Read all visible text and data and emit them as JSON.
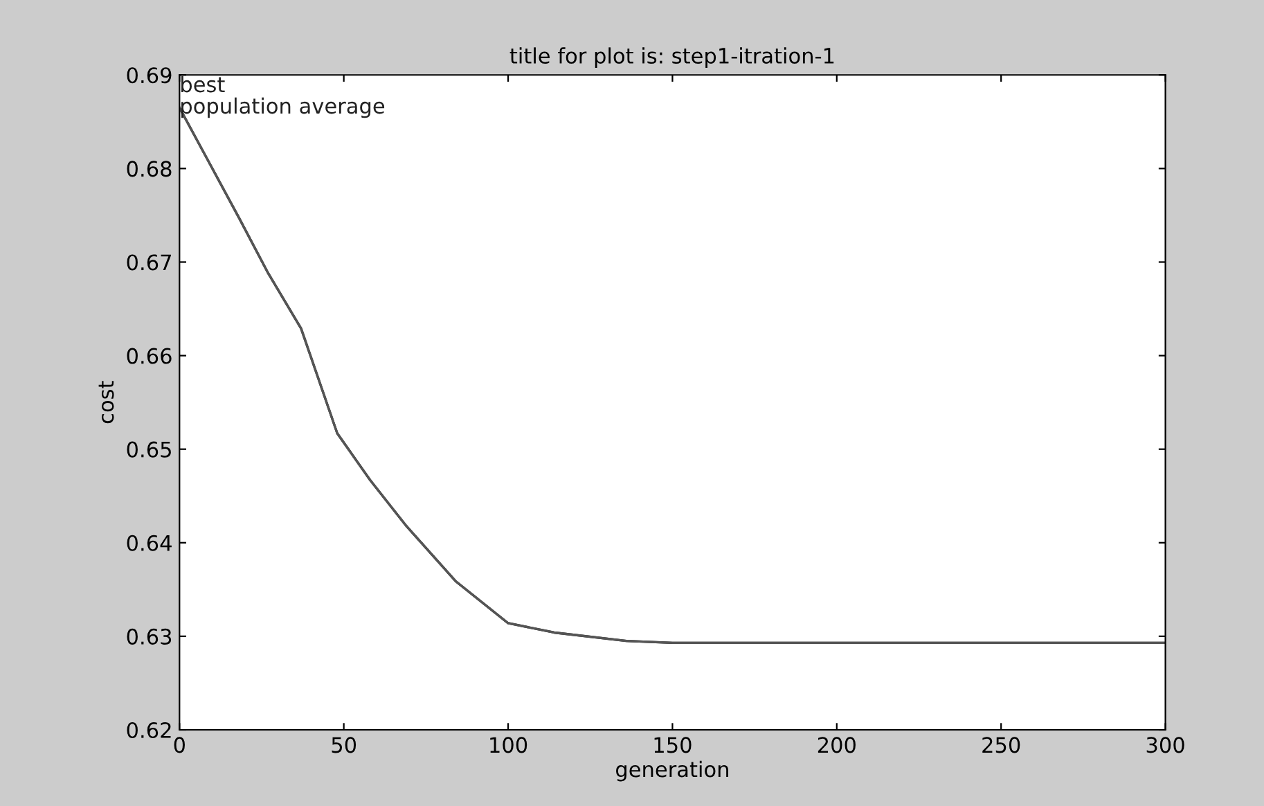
{
  "chart_data": {
    "type": "line",
    "title": "title for plot is: step1-itration-1",
    "xlabel": "generation",
    "ylabel": "cost",
    "xlim": [
      0,
      300
    ],
    "xticks": [
      0,
      50,
      100,
      150,
      200,
      250,
      300
    ],
    "ylim": [
      0.62,
      0.69
    ],
    "yticks": [
      0.62,
      0.63,
      0.64,
      0.65,
      0.66,
      0.67,
      0.68,
      0.69
    ],
    "grid": false,
    "legend": false,
    "marker": "none",
    "line_style": "solid",
    "series": [
      {
        "name": "best",
        "color": "#222222",
        "x": [
          0,
          8,
          18,
          27,
          37,
          48,
          58,
          69,
          84,
          100,
          114,
          136,
          150,
          200,
          250,
          300
        ],
        "values": [
          0.6865,
          0.6813,
          0.6748,
          0.6688,
          0.6629,
          0.6517,
          0.6467,
          0.6418,
          0.6359,
          0.6314,
          0.6304,
          0.6295,
          0.6293,
          0.6293,
          0.6293,
          0.6293
        ]
      },
      {
        "name": "population average",
        "color": "#555555",
        "x": [
          0,
          8,
          18,
          27,
          37,
          48,
          58,
          69,
          84,
          100,
          114,
          136,
          150,
          200,
          250,
          300
        ],
        "values": [
          0.6865,
          0.6813,
          0.6748,
          0.6688,
          0.6629,
          0.6517,
          0.6467,
          0.6418,
          0.6359,
          0.6314,
          0.6304,
          0.6295,
          0.6293,
          0.6293,
          0.6293,
          0.6293
        ]
      }
    ]
  }
}
